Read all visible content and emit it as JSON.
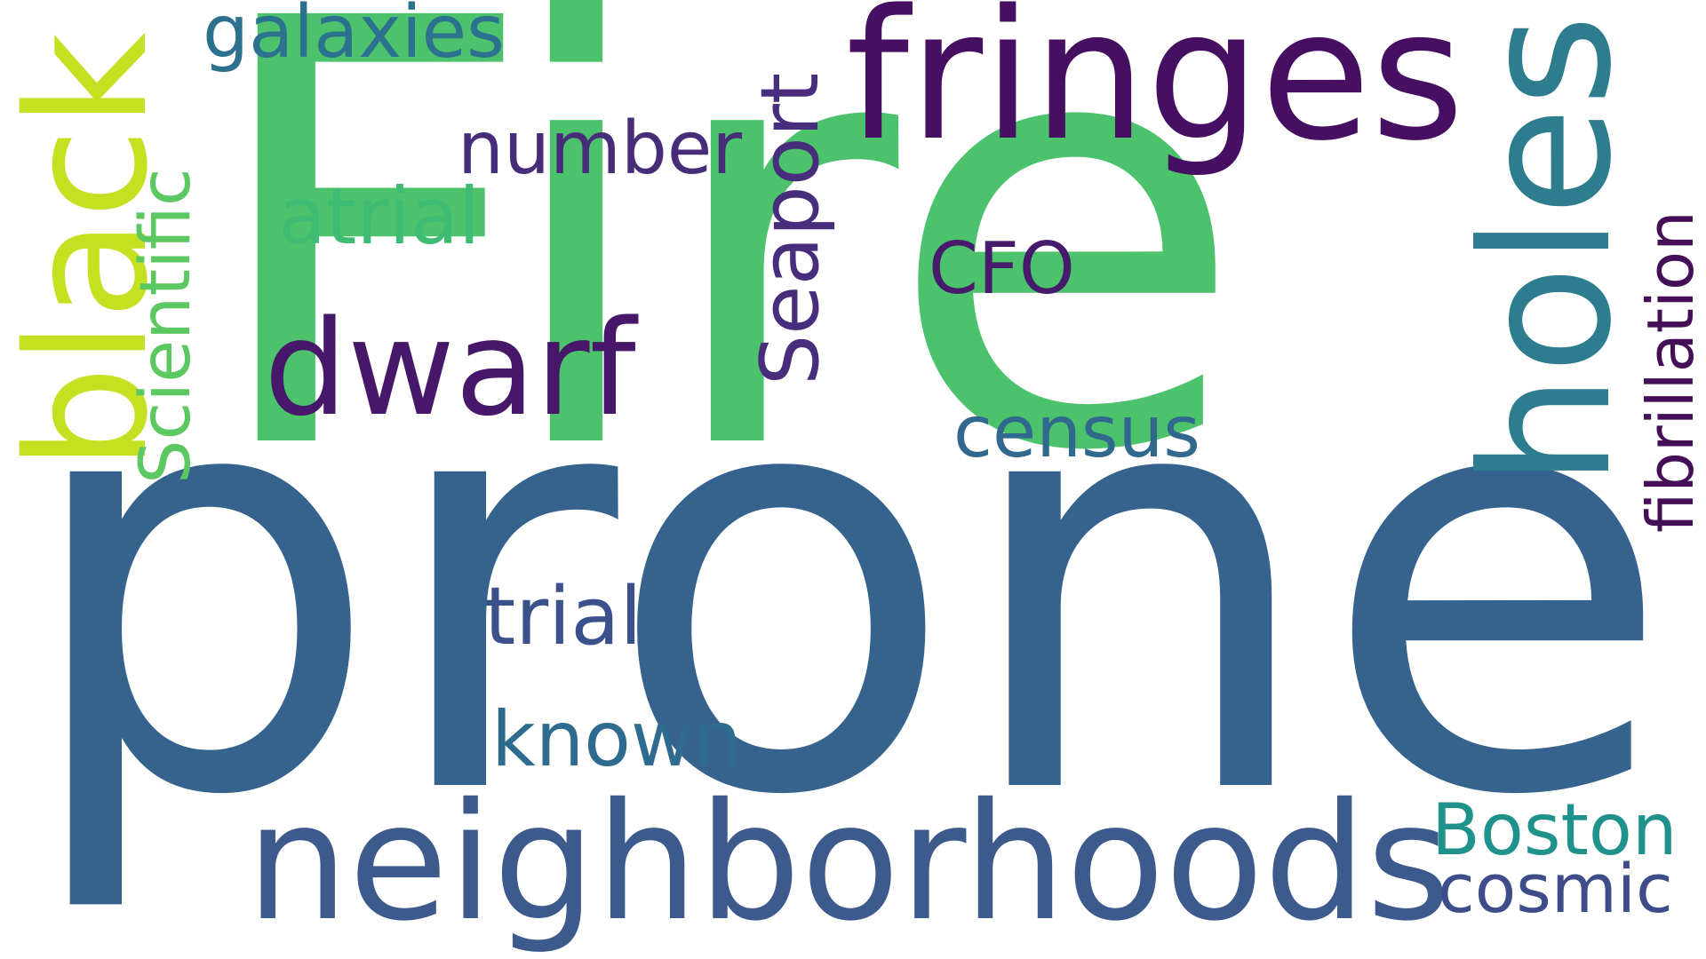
{
  "words": [
    {
      "text": "prone",
      "color": "#35638e"
    },
    {
      "text": "Fire",
      "color": "#4cc26c"
    },
    {
      "text": "fringes",
      "color": "#470f62"
    },
    {
      "text": "holes",
      "color": "#2e7d8e"
    },
    {
      "text": "black",
      "color": "#c5e021"
    },
    {
      "text": "neighborhoods",
      "color": "#3d5a8c"
    },
    {
      "text": "dwarf",
      "color": "#471769"
    },
    {
      "text": "Seaport",
      "color": "#472d7b"
    },
    {
      "text": "fibrillation",
      "color": "#440f57"
    },
    {
      "text": "Scientific",
      "color": "#5cc862"
    },
    {
      "text": "galaxies",
      "color": "#2c728e"
    },
    {
      "text": "number",
      "color": "#472c7a"
    },
    {
      "text": "atrial",
      "color": "#3fbc73"
    },
    {
      "text": "CFO",
      "color": "#481a6c"
    },
    {
      "text": "census",
      "color": "#31688e"
    },
    {
      "text": "trial",
      "color": "#3b518b"
    },
    {
      "text": "known",
      "color": "#2f6b8e"
    },
    {
      "text": "Boston",
      "color": "#20928c"
    },
    {
      "text": "cosmic",
      "color": "#3e4c8a"
    }
  ]
}
